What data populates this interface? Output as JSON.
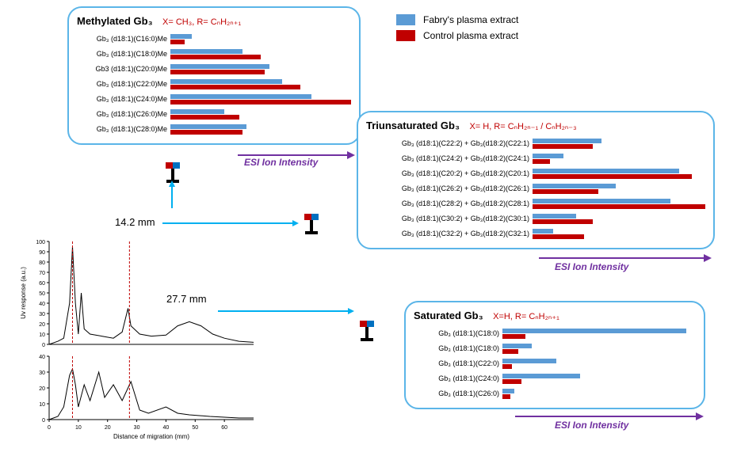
{
  "colors": {
    "fabry": "#5b9bd5",
    "control": "#c00000",
    "panel_border": "#5bb5e8",
    "axis": "#7030a0",
    "arrow_blue": "#00b0f0",
    "formula": "#c00000"
  },
  "legend": {
    "fabry": "Fabry's plasma extract",
    "control": "Control plasma extract"
  },
  "axis_text": "ESI Ion Intensity",
  "labels": {
    "mm14": "14.2 mm",
    "mm27": "27.7 mm"
  },
  "panels": {
    "methylated": {
      "title": "Methylated Gb₃",
      "formula": "X= CH₃, R= CₙH₂ₙ₊₁",
      "label_width": 118,
      "max": 100,
      "rows": [
        {
          "label": "Gb₃ (d18:1)(C16:0)Me",
          "fabry": 12,
          "control": 8
        },
        {
          "label": "Gb₃ (d18:1)(C18:0)Me",
          "fabry": 40,
          "control": 50
        },
        {
          "label": "Gb3 (d18:1)(C20:0)Me",
          "fabry": 55,
          "control": 52
        },
        {
          "label": "Gb₃ (d18:1)(C22:0)Me",
          "fabry": 62,
          "control": 72
        },
        {
          "label": "Gb₃ (d18:1)(C24:0)Me",
          "fabry": 78,
          "control": 100
        },
        {
          "label": "Gb₃ (d18:1)(C26:0)Me",
          "fabry": 30,
          "control": 38
        },
        {
          "label": "Gb₃ (d18:1)(C28:0)Me",
          "fabry": 42,
          "control": 40
        }
      ]
    },
    "triunsat": {
      "title": "Triunsaturated Gb₃",
      "formula": "X= H, R= CₙH₂ₙ₋₁ / CₙH₂ₙ₋₃",
      "label_width": 210,
      "max": 100,
      "rows": [
        {
          "label": "Gb₃ (d18:1)(C22:2) + Gb₃(d18:2)(C22:1)",
          "fabry": 40,
          "control": 35
        },
        {
          "label": "Gb₃ (d18:1)(C24:2) + Gb₃(d18:2)(C24:1)",
          "fabry": 18,
          "control": 10
        },
        {
          "label": "Gb₃ (d18:1)(C20:2) + Gb₃(d18:2)(C20:1)",
          "fabry": 85,
          "control": 92
        },
        {
          "label": "Gb₃ (d18:1)(C26:2) + Gb₃(d18:2)(C26:1)",
          "fabry": 48,
          "control": 38
        },
        {
          "label": "Gb₃ (d18:1)(C28:2) + Gb₃(d18:2)(C28:1)",
          "fabry": 80,
          "control": 100
        },
        {
          "label": "Gb₃ (d18:1)(C30:2) + Gb₃(d18:2)(C30:1)",
          "fabry": 25,
          "control": 35
        },
        {
          "label": "Gb₃ (d18:1)(C32:2) + Gb₃(d18:2)(C32:1)",
          "fabry": 12,
          "control": 30
        }
      ]
    },
    "saturated": {
      "title": "Saturated Gb₃",
      "formula": "X=H, R= CₙH₂ₙ₊₁",
      "label_width": 112,
      "max": 100,
      "rows": [
        {
          "label": "Gb₃ (d18:1)(C18:0)",
          "fabry": 95,
          "control": 12
        },
        {
          "label": "Gb₃ (d18:1)(C18:0)",
          "fabry": 15,
          "control": 8
        },
        {
          "label": "Gb₃ (d18:1)(C22:0)",
          "fabry": 28,
          "control": 5
        },
        {
          "label": "Gb₃ (d18:1)(C24:0)",
          "fabry": 40,
          "control": 10
        },
        {
          "label": "Gb₃ (d18:1)(C26:0)",
          "fabry": 6,
          "control": 4
        }
      ]
    }
  },
  "uvplot": {
    "xlabel": "Distance of migration (mm)",
    "ylabel": "Uv response (a.u.)",
    "x_range": [
      0,
      70
    ],
    "x_ticks": [
      0,
      10,
      20,
      30,
      40,
      50,
      60
    ],
    "top": {
      "y_range": [
        0,
        100
      ],
      "y_ticks": [
        0,
        10,
        20,
        30,
        40,
        50,
        60,
        70,
        80,
        90,
        100
      ],
      "trace": [
        [
          0,
          0
        ],
        [
          3,
          3
        ],
        [
          5,
          6
        ],
        [
          7,
          40
        ],
        [
          8,
          95
        ],
        [
          9,
          40
        ],
        [
          10,
          10
        ],
        [
          11,
          50
        ],
        [
          12,
          15
        ],
        [
          14,
          10
        ],
        [
          18,
          8
        ],
        [
          22,
          6
        ],
        [
          25,
          12
        ],
        [
          27,
          35
        ],
        [
          28,
          18
        ],
        [
          31,
          10
        ],
        [
          35,
          8
        ],
        [
          40,
          9
        ],
        [
          44,
          18
        ],
        [
          48,
          22
        ],
        [
          52,
          18
        ],
        [
          56,
          10
        ],
        [
          60,
          6
        ],
        [
          65,
          3
        ],
        [
          70,
          2
        ]
      ],
      "dashes": [
        8,
        27.5
      ]
    },
    "bottom": {
      "y_range": [
        0,
        40
      ],
      "y_ticks": [
        0,
        10,
        20,
        30,
        40
      ],
      "trace": [
        [
          0,
          0
        ],
        [
          3,
          2
        ],
        [
          5,
          8
        ],
        [
          7,
          28
        ],
        [
          8,
          32
        ],
        [
          9,
          22
        ],
        [
          10,
          8
        ],
        [
          12,
          22
        ],
        [
          14,
          12
        ],
        [
          17,
          30
        ],
        [
          19,
          14
        ],
        [
          22,
          22
        ],
        [
          25,
          12
        ],
        [
          28,
          24
        ],
        [
          31,
          6
        ],
        [
          34,
          4
        ],
        [
          40,
          8
        ],
        [
          44,
          4
        ],
        [
          48,
          3
        ],
        [
          55,
          2
        ],
        [
          65,
          1
        ],
        [
          70,
          1
        ]
      ],
      "dashes": [
        8,
        27.5
      ]
    }
  }
}
